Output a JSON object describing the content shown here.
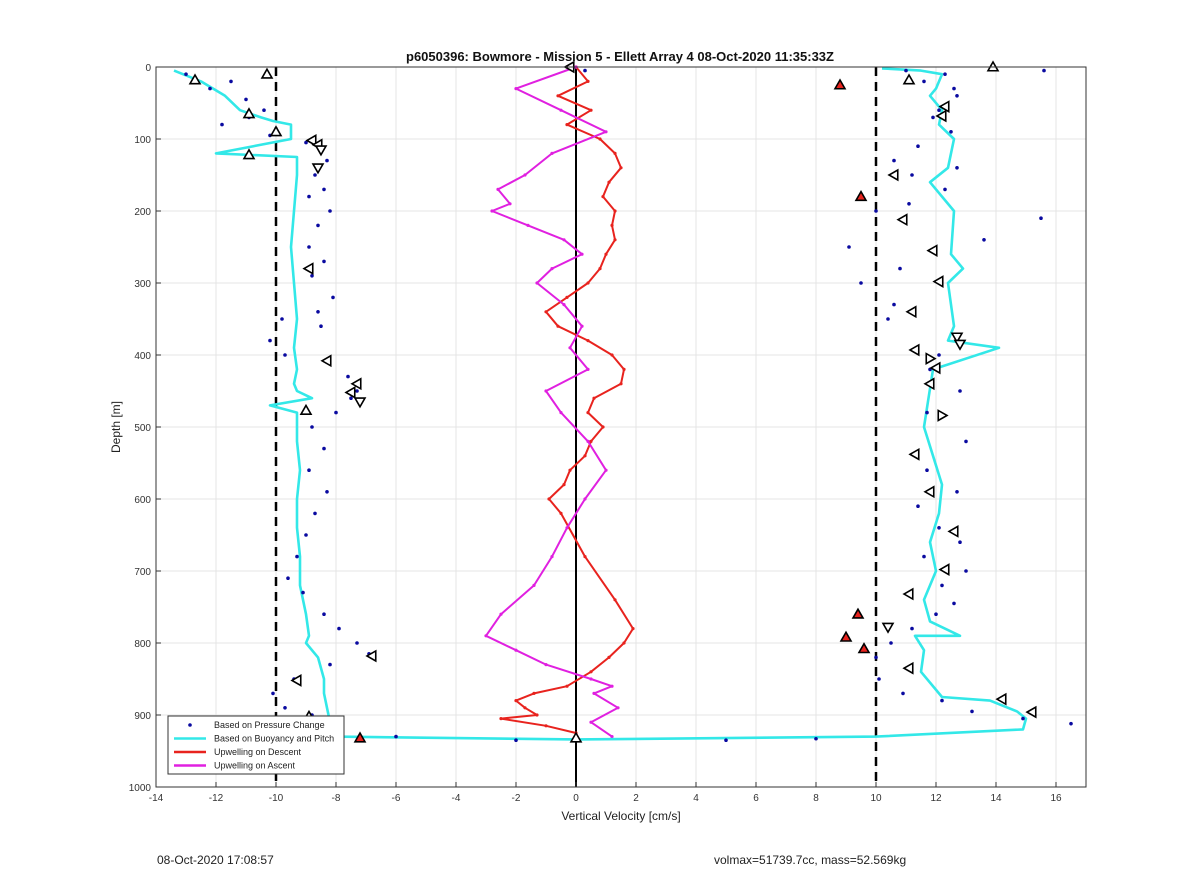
{
  "chart_data": {
    "type": "scatter",
    "title": "p6050396: Bowmore - Mission 5 - Ellett Array 4 08-Oct-2020 11:35:33Z",
    "xlabel": "Vertical Velocity [cm/s]",
    "ylabel": "Depth [m]",
    "xlim": [
      -14,
      17
    ],
    "ylim": [
      0,
      1000
    ],
    "y_reversed": true,
    "grid": true,
    "x_ticks": [
      -14,
      -12,
      -10,
      -8,
      -6,
      -4,
      -2,
      0,
      2,
      4,
      6,
      8,
      10,
      12,
      14,
      16
    ],
    "y_ticks": [
      0,
      100,
      200,
      300,
      400,
      500,
      600,
      700,
      800,
      900,
      1000
    ],
    "reference_lines": [
      {
        "x": -10,
        "style": "dashed"
      },
      {
        "x": 0,
        "style": "solid"
      },
      {
        "x": 10,
        "style": "dashed"
      }
    ],
    "legend": {
      "placement": "bottom-left",
      "entries": [
        "Based on Pressure Change",
        "Based on Buoyancy and Pitch",
        "Upwelling on Descent",
        "Upwelling on Ascent"
      ]
    },
    "series": [
      {
        "name": "Upwelling on Descent",
        "color": "#e8231e",
        "x": [
          0,
          0.4,
          -0.6,
          0.5,
          -0.3,
          0.8,
          1.3,
          1.5,
          1.1,
          0.9,
          1.3,
          1.2,
          1.3,
          1.0,
          0.8,
          0.4,
          -0.3,
          -1.0,
          -0.6,
          0.4,
          1.2,
          1.6,
          1.5,
          0.6,
          0.4,
          0.9,
          0.5,
          0.3,
          -0.2,
          -0.4,
          -0.9,
          -0.5,
          0.3,
          1.3,
          1.9,
          1.6,
          1.1,
          0.5,
          -0.3,
          -1.4,
          -2.0,
          -1.7,
          -1.3,
          -2.5,
          -1.0,
          0.0
        ],
        "y": [
          0,
          20,
          40,
          60,
          80,
          100,
          120,
          140,
          160,
          180,
          200,
          220,
          240,
          260,
          280,
          300,
          320,
          340,
          360,
          380,
          400,
          420,
          440,
          460,
          480,
          500,
          520,
          540,
          560,
          580,
          600,
          620,
          680,
          740,
          780,
          800,
          820,
          840,
          860,
          870,
          880,
          890,
          900,
          905,
          915,
          925
        ]
      },
      {
        "name": "Upwelling on Ascent",
        "color": "#e020e0",
        "x": [
          0,
          -2.0,
          -0.5,
          1.0,
          -0.8,
          -1.7,
          -2.6,
          -2.2,
          -2.8,
          -1.6,
          -0.4,
          0.2,
          -0.8,
          -1.3,
          -0.4,
          0.2,
          -0.2,
          0.4,
          -1.0,
          -0.5,
          0.4,
          1.0,
          0.3,
          -0.3,
          -0.8,
          -1.4,
          -2.5,
          -3.0,
          -2.0,
          -1.0,
          0.5,
          1.2,
          0.6,
          1.4,
          0.5,
          1.2
        ],
        "y": [
          0,
          30,
          60,
          90,
          120,
          150,
          170,
          190,
          200,
          220,
          240,
          260,
          280,
          300,
          330,
          360,
          390,
          420,
          450,
          480,
          520,
          560,
          600,
          640,
          680,
          720,
          760,
          790,
          810,
          830,
          850,
          860,
          870,
          890,
          910,
          930
        ]
      },
      {
        "name": "Based on Buoyancy and Pitch",
        "color": "#33e8e8",
        "x": [
          -13.4,
          -12.5,
          -11.7,
          -11.2,
          -10.5,
          -10.1,
          -9.5,
          -9.5,
          -12.0,
          -9.3,
          -9.3,
          -9.4,
          -9.5,
          -9.4,
          -9.3,
          -9.4,
          -9.3,
          -9.4,
          -9.3,
          -8.8,
          -10.2,
          -9.3,
          -9.3,
          -9.2,
          -9.3,
          -9.3,
          -9.2,
          -9.2,
          -9.0,
          -8.9,
          -9.0,
          -8.6,
          -8.4,
          -8.4,
          -8.3,
          -8.2,
          -8.3,
          -8.1,
          0,
          10.0,
          14.9,
          15.0,
          14.7,
          13.8,
          12.2,
          11.5,
          11.6,
          11.3,
          12.8,
          11.8,
          11.6,
          12.0,
          11.8,
          12.1,
          12.2,
          11.9,
          11.6,
          11.9,
          14.1,
          12.4,
          12.6,
          12.4,
          12.9,
          12.5,
          12.6,
          11.8,
          12.4,
          12.6,
          12.1,
          12.2,
          11.8,
          12.0,
          12.2,
          11.5,
          10.2
        ],
        "y": [
          5,
          20,
          40,
          60,
          70,
          75,
          80,
          100,
          120,
          125,
          150,
          200,
          250,
          300,
          350,
          390,
          420,
          440,
          450,
          460,
          470,
          480,
          520,
          560,
          600,
          640,
          680,
          720,
          760,
          790,
          800,
          820,
          850,
          870,
          890,
          910,
          925,
          930,
          934,
          930,
          920,
          905,
          895,
          880,
          875,
          840,
          810,
          790,
          790,
          770,
          740,
          700,
          660,
          620,
          580,
          540,
          500,
          420,
          390,
          380,
          360,
          300,
          280,
          260,
          200,
          160,
          140,
          100,
          80,
          60,
          40,
          30,
          10,
          5,
          2
        ]
      },
      {
        "name": "Based on Pressure Change",
        "color": "#0a0aa0",
        "x": [
          -13.0,
          -11.5,
          -12.2,
          -11.0,
          -10.4,
          -11.8,
          -10.9,
          -10.2,
          -9.0,
          -8.6,
          -8.3,
          -8.7,
          -8.4,
          -8.9,
          -8.2,
          -8.6,
          -8.9,
          -8.4,
          -8.8,
          -8.1,
          -8.6,
          -8.5,
          -9.8,
          -10.2,
          -9.7,
          -8.3,
          -7.6,
          -7.3,
          -7.5,
          -8.0,
          -8.8,
          -8.4,
          -8.9,
          -8.3,
          -8.7,
          -9.0,
          -9.3,
          -9.6,
          -9.1,
          -8.4,
          -7.9,
          -7.3,
          -6.9,
          -8.2,
          -9.4,
          -10.1,
          -9.7,
          -8.8,
          -9.2,
          -6.0,
          -2.0,
          0.0,
          5.0,
          8.0,
          15.6,
          16.5,
          14.9,
          13.2,
          12.2,
          10.9,
          10.1,
          10.0,
          10.5,
          11.2,
          12.0,
          12.6,
          12.2,
          13.0,
          11.6,
          12.8,
          12.1,
          11.4,
          12.7,
          11.7,
          13.0,
          11.7,
          12.8,
          11.8,
          12.1,
          10.4,
          9.5,
          9.1,
          10.0,
          11.1,
          12.3,
          11.2,
          12.7,
          10.6,
          11.4,
          12.5,
          11.9,
          12.1,
          12.7,
          12.6,
          11.6,
          12.3,
          11.0,
          10.6,
          10.8,
          13.6,
          15.5,
          0.3
        ],
        "y": [
          10,
          20,
          30,
          45,
          60,
          80,
          70,
          95,
          105,
          110,
          130,
          150,
          170,
          180,
          200,
          220,
          250,
          270,
          290,
          320,
          340,
          360,
          350,
          380,
          400,
          410,
          430,
          450,
          460,
          480,
          500,
          530,
          560,
          590,
          620,
          650,
          680,
          710,
          730,
          760,
          780,
          800,
          815,
          830,
          850,
          870,
          890,
          900,
          915,
          930,
          935,
          935,
          935,
          933,
          5,
          912,
          905,
          895,
          880,
          870,
          850,
          820,
          800,
          780,
          760,
          745,
          720,
          700,
          680,
          660,
          640,
          610,
          590,
          560,
          520,
          480,
          450,
          420,
          400,
          350,
          300,
          250,
          200,
          190,
          170,
          150,
          140,
          130,
          110,
          90,
          70,
          60,
          40,
          30,
          20,
          10,
          5,
          330,
          280,
          240,
          210,
          5
        ]
      }
    ],
    "markers": [
      {
        "x": -12.7,
        "y": 18,
        "kind": "up"
      },
      {
        "x": -10.3,
        "y": 10,
        "kind": "up"
      },
      {
        "x": -10.9,
        "y": 65,
        "kind": "up"
      },
      {
        "x": -10.0,
        "y": 90,
        "kind": "up"
      },
      {
        "x": -10.9,
        "y": 122,
        "kind": "up"
      },
      {
        "x": -8.8,
        "y": 102,
        "kind": "left"
      },
      {
        "x": -8.6,
        "y": 108,
        "kind": "left"
      },
      {
        "x": -8.5,
        "y": 115,
        "kind": "down"
      },
      {
        "x": -8.6,
        "y": 140,
        "kind": "down"
      },
      {
        "x": -8.9,
        "y": 280,
        "kind": "left"
      },
      {
        "x": -8.3,
        "y": 408,
        "kind": "left"
      },
      {
        "x": -7.3,
        "y": 440,
        "kind": "left"
      },
      {
        "x": -7.5,
        "y": 452,
        "kind": "left"
      },
      {
        "x": -7.2,
        "y": 465,
        "kind": "down"
      },
      {
        "x": -9.0,
        "y": 477,
        "kind": "up"
      },
      {
        "x": -6.8,
        "y": 818,
        "kind": "left"
      },
      {
        "x": -9.3,
        "y": 852,
        "kind": "left"
      },
      {
        "x": -8.9,
        "y": 902,
        "kind": "up"
      },
      {
        "x": -7.2,
        "y": 932,
        "kind": "filled"
      },
      {
        "x": -0.2,
        "y": 0,
        "kind": "left"
      },
      {
        "x": 0.0,
        "y": 932,
        "kind": "up"
      },
      {
        "x": 8.8,
        "y": 25,
        "kind": "filled"
      },
      {
        "x": 9.5,
        "y": 180,
        "kind": "filled"
      },
      {
        "x": 9.4,
        "y": 760,
        "kind": "filled"
      },
      {
        "x": 9.0,
        "y": 792,
        "kind": "filled"
      },
      {
        "x": 9.6,
        "y": 808,
        "kind": "filled"
      },
      {
        "x": 13.9,
        "y": 0,
        "kind": "up"
      },
      {
        "x": 11.1,
        "y": 18,
        "kind": "up"
      },
      {
        "x": 12.3,
        "y": 55,
        "kind": "left"
      },
      {
        "x": 12.2,
        "y": 68,
        "kind": "left"
      },
      {
        "x": 10.6,
        "y": 150,
        "kind": "left"
      },
      {
        "x": 10.9,
        "y": 212,
        "kind": "left"
      },
      {
        "x": 11.9,
        "y": 255,
        "kind": "left"
      },
      {
        "x": 12.1,
        "y": 298,
        "kind": "left"
      },
      {
        "x": 11.2,
        "y": 340,
        "kind": "left"
      },
      {
        "x": 12.7,
        "y": 375,
        "kind": "down"
      },
      {
        "x": 12.8,
        "y": 385,
        "kind": "down"
      },
      {
        "x": 11.3,
        "y": 393,
        "kind": "left"
      },
      {
        "x": 11.8,
        "y": 405,
        "kind": "right"
      },
      {
        "x": 12.0,
        "y": 418,
        "kind": "left"
      },
      {
        "x": 11.8,
        "y": 440,
        "kind": "left"
      },
      {
        "x": 12.2,
        "y": 484,
        "kind": "right"
      },
      {
        "x": 11.3,
        "y": 538,
        "kind": "left"
      },
      {
        "x": 11.8,
        "y": 590,
        "kind": "left"
      },
      {
        "x": 12.6,
        "y": 645,
        "kind": "left"
      },
      {
        "x": 12.3,
        "y": 698,
        "kind": "left"
      },
      {
        "x": 11.1,
        "y": 732,
        "kind": "left"
      },
      {
        "x": 10.4,
        "y": 778,
        "kind": "down"
      },
      {
        "x": 11.1,
        "y": 835,
        "kind": "left"
      },
      {
        "x": 14.2,
        "y": 878,
        "kind": "left"
      },
      {
        "x": 15.2,
        "y": 896,
        "kind": "left"
      }
    ]
  },
  "footer": {
    "timestamp": "08-Oct-2020 17:08:57",
    "metadata": "volmax=51739.7cc, mass=52.569kg"
  }
}
